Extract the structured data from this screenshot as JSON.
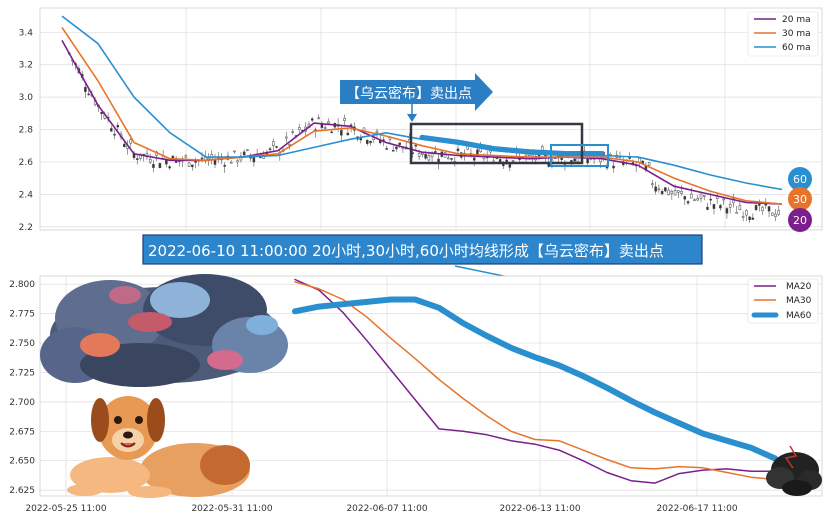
{
  "chart_data": [
    {
      "type": "line",
      "yticks": [
        2.2,
        2.4,
        2.6,
        2.8,
        3.0,
        3.2,
        3.4
      ],
      "ylim": [
        2.18,
        3.55
      ],
      "grid": true,
      "legend": {
        "placement": "top-right",
        "entries": [
          "20 ma",
          "30 ma",
          "60 ma"
        ]
      },
      "x": [
        0,
        5,
        10,
        15,
        20,
        25,
        30,
        35,
        40,
        45,
        50,
        55,
        60,
        65,
        70,
        75,
        80,
        85,
        90,
        95,
        100
      ],
      "series": [
        {
          "name": "20 ma",
          "color": "#7a1f8c",
          "values": [
            3.35,
            2.95,
            2.65,
            2.61,
            2.61,
            2.63,
            2.67,
            2.84,
            2.82,
            2.72,
            2.66,
            2.64,
            2.63,
            2.62,
            2.63,
            2.62,
            2.58,
            2.45,
            2.4,
            2.35,
            2.34
          ]
        },
        {
          "name": "30 ma",
          "color": "#e8742a",
          "values": [
            3.43,
            3.1,
            2.72,
            2.62,
            2.61,
            2.63,
            2.65,
            2.79,
            2.81,
            2.76,
            2.7,
            2.65,
            2.64,
            2.63,
            2.63,
            2.63,
            2.6,
            2.5,
            2.42,
            2.36,
            2.34
          ]
        },
        {
          "name": "60 ma",
          "color": "#2a8fce",
          "values": [
            3.5,
            3.33,
            3.0,
            2.78,
            2.63,
            2.63,
            2.64,
            2.69,
            2.74,
            2.78,
            2.74,
            2.71,
            2.67,
            2.65,
            2.64,
            2.64,
            2.63,
            2.58,
            2.52,
            2.47,
            2.43
          ]
        }
      ],
      "end_badges": [
        {
          "label": "60",
          "color": "#2a8fce"
        },
        {
          "label": "30",
          "color": "#e8742a"
        },
        {
          "label": "20",
          "color": "#7a1f8c"
        }
      ],
      "annotation": "【乌云密布】卖出点"
    },
    {
      "type": "line",
      "yticks": [
        2.625,
        2.65,
        2.675,
        2.7,
        2.725,
        2.75,
        2.775,
        2.8
      ],
      "ylim": [
        2.62,
        2.807
      ],
      "xticks": [
        "2022-05-25 11:00",
        "2022-05-31 11:00",
        "2022-06-07 11:00",
        "2022-06-13 11:00",
        "2022-06-17 11:00"
      ],
      "grid": true,
      "legend": {
        "placement": "top-right",
        "entries": [
          "MA20",
          "MA30",
          "MA60"
        ]
      },
      "x": [
        0,
        5,
        10,
        15,
        20,
        25,
        30,
        35,
        40,
        45,
        50,
        55,
        60,
        65,
        70,
        75,
        80,
        85,
        90,
        95,
        100
      ],
      "series": [
        {
          "name": "MA20",
          "color": "#7a1f8c",
          "values": [
            2.804,
            2.795,
            2.776,
            2.752,
            2.727,
            2.702,
            2.677,
            2.675,
            2.672,
            2.667,
            2.664,
            2.659,
            2.65,
            2.64,
            2.633,
            2.631,
            2.639,
            2.642,
            2.643,
            2.641,
            2.641
          ]
        },
        {
          "name": "MA30",
          "color": "#e8742a",
          "values": [
            2.802,
            2.796,
            2.787,
            2.772,
            2.754,
            2.737,
            2.719,
            2.703,
            2.688,
            2.675,
            2.668,
            2.667,
            2.659,
            2.651,
            2.644,
            2.643,
            2.645,
            2.644,
            2.64,
            2.636,
            2.634
          ]
        },
        {
          "name": "MA60",
          "color": "#2a8fce",
          "values": [
            2.777,
            2.781,
            2.783,
            2.785,
            2.787,
            2.787,
            2.78,
            2.767,
            2.756,
            2.746,
            2.738,
            2.731,
            2.722,
            2.712,
            2.701,
            2.691,
            2.682,
            2.673,
            2.667,
            2.661,
            2.652
          ]
        }
      ]
    }
  ],
  "banner": "2022-06-10 11:00:00 20小时,30小时,60小时均线形成【乌云密布】卖出点"
}
